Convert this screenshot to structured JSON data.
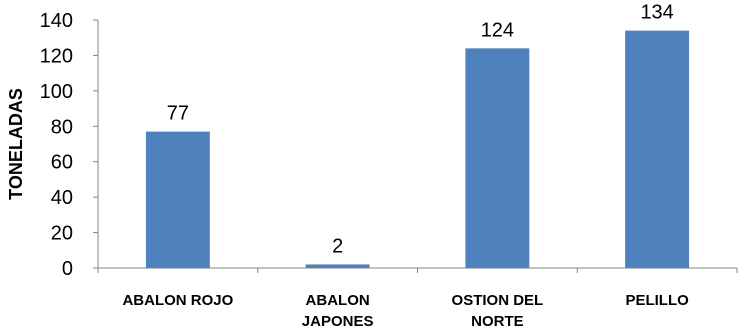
{
  "chart_data": {
    "type": "bar",
    "categories": [
      [
        "ABALON ROJO"
      ],
      [
        "ABALON",
        "JAPONES"
      ],
      [
        "OSTION DEL",
        "NORTE"
      ],
      [
        "PELILLO"
      ]
    ],
    "values": [
      77,
      2,
      124,
      134
    ],
    "data_labels": [
      "77",
      "2",
      "124",
      "134"
    ],
    "title": "",
    "xlabel": "",
    "ylabel": "TONELADAS",
    "ylim": [
      0,
      140
    ],
    "yticks": [
      0,
      20,
      40,
      60,
      80,
      100,
      120,
      140
    ],
    "grid": false,
    "legend": "none",
    "bar_color": "#4F81BD",
    "axis_color": "#868686"
  }
}
